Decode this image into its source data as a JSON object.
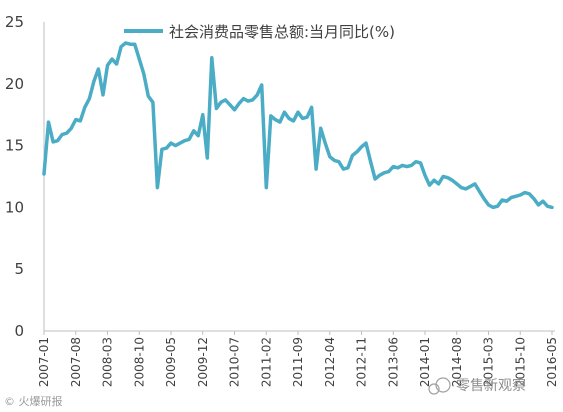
{
  "chart_data": {
    "type": "line",
    "series": [
      {
        "name": "社会消费品零售总额:当月同比(%)",
        "color": "#4BACC6",
        "x": [
          "2007-01",
          "2007-02",
          "2007-03",
          "2007-04",
          "2007-05",
          "2007-06",
          "2007-07",
          "2007-08",
          "2007-09",
          "2007-10",
          "2007-11",
          "2007-12",
          "2008-01",
          "2008-02",
          "2008-03",
          "2008-04",
          "2008-05",
          "2008-06",
          "2008-07",
          "2008-08",
          "2008-09",
          "2008-10",
          "2008-11",
          "2008-12",
          "2009-01",
          "2009-02",
          "2009-03",
          "2009-04",
          "2009-05",
          "2009-06",
          "2009-07",
          "2009-08",
          "2009-09",
          "2009-10",
          "2009-11",
          "2009-12",
          "2010-01",
          "2010-02",
          "2010-03",
          "2010-04",
          "2010-05",
          "2010-06",
          "2010-07",
          "2010-08",
          "2010-09",
          "2010-10",
          "2010-11",
          "2010-12",
          "2011-01",
          "2011-02",
          "2011-03",
          "2011-04",
          "2011-05",
          "2011-06",
          "2011-07",
          "2011-08",
          "2011-09",
          "2011-10",
          "2011-11",
          "2011-12",
          "2012-01",
          "2012-02",
          "2012-03",
          "2012-04",
          "2012-05",
          "2012-06",
          "2012-07",
          "2012-08",
          "2012-09",
          "2012-10",
          "2012-11",
          "2012-12",
          "2013-01",
          "2013-02",
          "2013-03",
          "2013-04",
          "2013-05",
          "2013-06",
          "2013-07",
          "2013-08",
          "2013-09",
          "2013-10",
          "2013-11",
          "2013-12",
          "2014-01",
          "2014-02",
          "2014-03",
          "2014-04",
          "2014-05",
          "2014-06",
          "2014-07",
          "2014-08",
          "2014-09",
          "2014-10",
          "2014-11",
          "2014-12",
          "2015-01",
          "2015-02",
          "2015-03",
          "2015-04",
          "2015-05",
          "2015-06",
          "2015-07",
          "2015-08",
          "2015-09",
          "2015-10",
          "2015-11",
          "2015-12",
          "2016-01",
          "2016-02",
          "2016-03",
          "2016-04",
          "2016-05"
        ],
        "values": [
          12.7,
          16.9,
          15.3,
          15.4,
          15.9,
          16.0,
          16.4,
          17.1,
          17.0,
          18.1,
          18.8,
          20.2,
          21.2,
          19.1,
          21.5,
          22.0,
          21.6,
          23.0,
          23.3,
          23.2,
          23.2,
          22.0,
          20.8,
          19.0,
          18.5,
          11.6,
          14.7,
          14.8,
          15.2,
          15.0,
          15.2,
          15.4,
          15.5,
          16.2,
          15.8,
          17.5,
          14.0,
          22.1,
          18.0,
          18.5,
          18.7,
          18.3,
          17.9,
          18.4,
          18.8,
          18.6,
          18.7,
          19.1,
          19.9,
          11.6,
          17.4,
          17.1,
          16.9,
          17.7,
          17.2,
          17.0,
          17.7,
          17.2,
          17.3,
          18.1,
          13.1,
          16.4,
          15.2,
          14.1,
          13.8,
          13.7,
          13.1,
          13.2,
          14.2,
          14.5,
          14.9,
          15.2,
          13.7,
          12.3,
          12.6,
          12.8,
          12.9,
          13.3,
          13.2,
          13.4,
          13.3,
          13.4,
          13.7,
          13.6,
          12.6,
          11.8,
          12.2,
          11.9,
          12.5,
          12.4,
          12.2,
          11.9,
          11.6,
          11.5,
          11.7,
          11.9,
          11.3,
          10.7,
          10.2,
          10.0,
          10.1,
          10.6,
          10.5,
          10.8,
          10.9,
          11.0,
          11.2,
          11.1,
          10.7,
          10.2,
          10.5,
          10.1,
          10.0
        ]
      }
    ],
    "ylim": [
      0,
      25
    ],
    "yticks": [
      "0",
      "5",
      "10",
      "15",
      "20",
      "25"
    ],
    "xtick_labels": [
      "2007-01",
      "2007-08",
      "2008-03",
      "2008-10",
      "2009-05",
      "2009-12",
      "2010-07",
      "2011-02",
      "2011-09",
      "2012-04",
      "2012-11",
      "2013-06",
      "2014-01",
      "2014-08",
      "2015-03",
      "2015-10",
      "2016-05"
    ],
    "legend_position": "top",
    "grid": false
  },
  "watermark": {
    "bottom_left": "© 火爆研报",
    "bottom_right": "零售新观察"
  }
}
